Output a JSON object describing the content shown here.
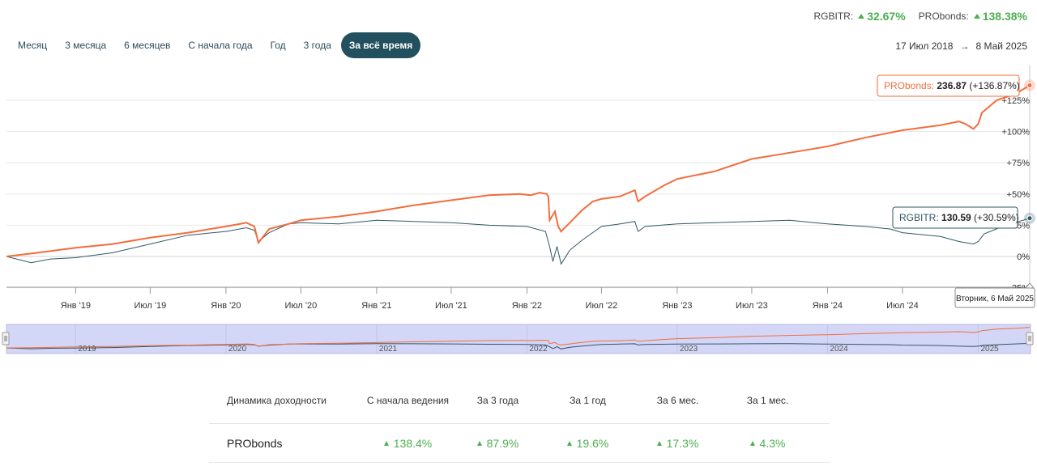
{
  "summary": [
    {
      "label": "RGBITR:",
      "value": "32.67%"
    },
    {
      "label": "PRObonds:",
      "value": "138.38%"
    }
  ],
  "ranges": [
    {
      "label": "Месяц",
      "active": false
    },
    {
      "label": "3 месяца",
      "active": false
    },
    {
      "label": "6 месяцев",
      "active": false
    },
    {
      "label": "С начала года",
      "active": false
    },
    {
      "label": "Год",
      "active": false
    },
    {
      "label": "3 года",
      "active": false
    },
    {
      "label": "За всё время",
      "active": true
    }
  ],
  "daterange": {
    "from": "17 Июл 2018",
    "arrow": "→",
    "to": "8 Май 2025"
  },
  "colors": {
    "probonds": "#f26d3d",
    "rgbitr": "#2f5866",
    "navigator_fill": "#d4d6f7",
    "active_tab": "#22505e",
    "positive": "#4caf50"
  },
  "chart_data": {
    "type": "line",
    "x_range": [
      "2018-07-17",
      "2025-05-08"
    ],
    "y_ticks": [
      {
        "value": -25,
        "label": "-25%"
      },
      {
        "value": 0,
        "label": "0%"
      },
      {
        "value": 25,
        "label": "+25%"
      },
      {
        "value": 50,
        "label": "+50%"
      },
      {
        "value": 75,
        "label": "+75%"
      },
      {
        "value": 100,
        "label": "+100%"
      },
      {
        "value": 125,
        "label": "+125%"
      }
    ],
    "x_ticks": [
      {
        "date": "2019-01-01",
        "label": "Янв '19"
      },
      {
        "date": "2019-07-01",
        "label": "Июл '19"
      },
      {
        "date": "2020-01-01",
        "label": "Янв '20"
      },
      {
        "date": "2020-07-01",
        "label": "Июл '20"
      },
      {
        "date": "2021-01-01",
        "label": "Янв '21"
      },
      {
        "date": "2021-07-01",
        "label": "Июл '21"
      },
      {
        "date": "2022-01-01",
        "label": "Янв '22"
      },
      {
        "date": "2022-07-01",
        "label": "Июл '22"
      },
      {
        "date": "2023-01-01",
        "label": "Янв '23"
      },
      {
        "date": "2023-07-01",
        "label": "Июл '23"
      },
      {
        "date": "2024-01-01",
        "label": "Янв '24"
      },
      {
        "date": "2024-07-01",
        "label": "Июл '24"
      }
    ],
    "series": [
      {
        "name": "PRObonds",
        "points": [
          [
            "2018-07-17",
            0
          ],
          [
            "2018-10-01",
            3
          ],
          [
            "2019-01-01",
            7
          ],
          [
            "2019-04-01",
            10
          ],
          [
            "2019-07-01",
            15
          ],
          [
            "2019-10-01",
            19
          ],
          [
            "2020-01-01",
            24
          ],
          [
            "2020-02-20",
            27
          ],
          [
            "2020-03-10",
            24
          ],
          [
            "2020-03-20",
            11
          ],
          [
            "2020-04-15",
            22
          ],
          [
            "2020-06-01",
            26
          ],
          [
            "2020-07-01",
            29
          ],
          [
            "2020-10-01",
            32
          ],
          [
            "2021-01-01",
            36
          ],
          [
            "2021-04-01",
            41
          ],
          [
            "2021-07-01",
            45
          ],
          [
            "2021-10-01",
            49
          ],
          [
            "2021-12-15",
            50
          ],
          [
            "2022-01-10",
            49
          ],
          [
            "2022-02-01",
            51
          ],
          [
            "2022-02-18",
            50
          ],
          [
            "2022-02-22",
            48
          ],
          [
            "2022-02-25",
            29
          ],
          [
            "2022-03-10",
            36
          ],
          [
            "2022-03-18",
            24
          ],
          [
            "2022-03-25",
            20
          ],
          [
            "2022-04-15",
            27
          ],
          [
            "2022-05-15",
            37
          ],
          [
            "2022-06-10",
            44
          ],
          [
            "2022-07-01",
            46
          ],
          [
            "2022-08-15",
            48
          ],
          [
            "2022-09-20",
            53
          ],
          [
            "2022-09-28",
            44
          ],
          [
            "2022-10-15",
            48
          ],
          [
            "2022-12-01",
            57
          ],
          [
            "2023-01-01",
            62
          ],
          [
            "2023-04-01",
            68
          ],
          [
            "2023-07-01",
            78
          ],
          [
            "2023-10-01",
            83
          ],
          [
            "2024-01-01",
            88
          ],
          [
            "2024-04-01",
            95
          ],
          [
            "2024-07-01",
            101
          ],
          [
            "2024-10-01",
            105
          ],
          [
            "2024-11-15",
            108
          ],
          [
            "2024-12-01",
            106
          ],
          [
            "2024-12-20",
            102
          ],
          [
            "2025-01-01",
            106
          ],
          [
            "2025-01-10",
            115
          ],
          [
            "2025-02-15",
            125
          ],
          [
            "2025-04-01",
            130
          ],
          [
            "2025-05-06",
            136.87
          ]
        ]
      },
      {
        "name": "RGBITR",
        "points": [
          [
            "2018-07-17",
            0
          ],
          [
            "2018-09-15",
            -5
          ],
          [
            "2018-11-01",
            -2
          ],
          [
            "2019-01-01",
            -1
          ],
          [
            "2019-04-01",
            3
          ],
          [
            "2019-07-01",
            10
          ],
          [
            "2019-10-01",
            17
          ],
          [
            "2020-01-01",
            20
          ],
          [
            "2020-02-20",
            23
          ],
          [
            "2020-03-10",
            21
          ],
          [
            "2020-03-20",
            12
          ],
          [
            "2020-04-15",
            19
          ],
          [
            "2020-06-01",
            26
          ],
          [
            "2020-07-01",
            27
          ],
          [
            "2020-10-01",
            26
          ],
          [
            "2021-01-01",
            29
          ],
          [
            "2021-04-01",
            28
          ],
          [
            "2021-07-01",
            27
          ],
          [
            "2021-10-01",
            25
          ],
          [
            "2022-01-01",
            24
          ],
          [
            "2022-02-15",
            20
          ],
          [
            "2022-02-25",
            8
          ],
          [
            "2022-03-05",
            -4
          ],
          [
            "2022-03-15",
            8
          ],
          [
            "2022-03-25",
            -6
          ],
          [
            "2022-04-15",
            5
          ],
          [
            "2022-05-15",
            13
          ],
          [
            "2022-07-01",
            24
          ],
          [
            "2022-08-15",
            26
          ],
          [
            "2022-09-20",
            28
          ],
          [
            "2022-09-28",
            20
          ],
          [
            "2022-10-15",
            24
          ],
          [
            "2023-01-01",
            26
          ],
          [
            "2023-04-01",
            27
          ],
          [
            "2023-07-01",
            28
          ],
          [
            "2023-10-01",
            29
          ],
          [
            "2024-01-01",
            26
          ],
          [
            "2024-04-01",
            24
          ],
          [
            "2024-06-01",
            22
          ],
          [
            "2024-07-01",
            19
          ],
          [
            "2024-10-01",
            16
          ],
          [
            "2024-11-15",
            12
          ],
          [
            "2024-12-20",
            10
          ],
          [
            "2025-01-01",
            12
          ],
          [
            "2025-01-15",
            18
          ],
          [
            "2025-03-01",
            24
          ],
          [
            "2025-05-06",
            30.59
          ]
        ]
      }
    ],
    "tooltips": {
      "probonds": {
        "name": "PRObonds",
        "sep": ":",
        "value": "236.87",
        "change": "(+136.87%)"
      },
      "rgbitr": {
        "name": "RGBITR",
        "sep": ":",
        "value": "130.59",
        "change": "(+30.59%)"
      },
      "date": "Вторник, 6 Май 2025"
    },
    "navigator_labels": [
      "2019",
      "2020",
      "2021",
      "2022",
      "2023",
      "2024",
      "2025"
    ],
    "grid": true
  },
  "perf_table": {
    "headers": [
      "Динамика доходности",
      "С начала ведения",
      "За 3 года",
      "За 1 год",
      "За 6 мес.",
      "За 1 мес."
    ],
    "rows": [
      {
        "name": "PRObonds",
        "values": [
          "138.4%",
          "87.9%",
          "19.6%",
          "17.3%",
          "4.3%"
        ]
      }
    ]
  }
}
